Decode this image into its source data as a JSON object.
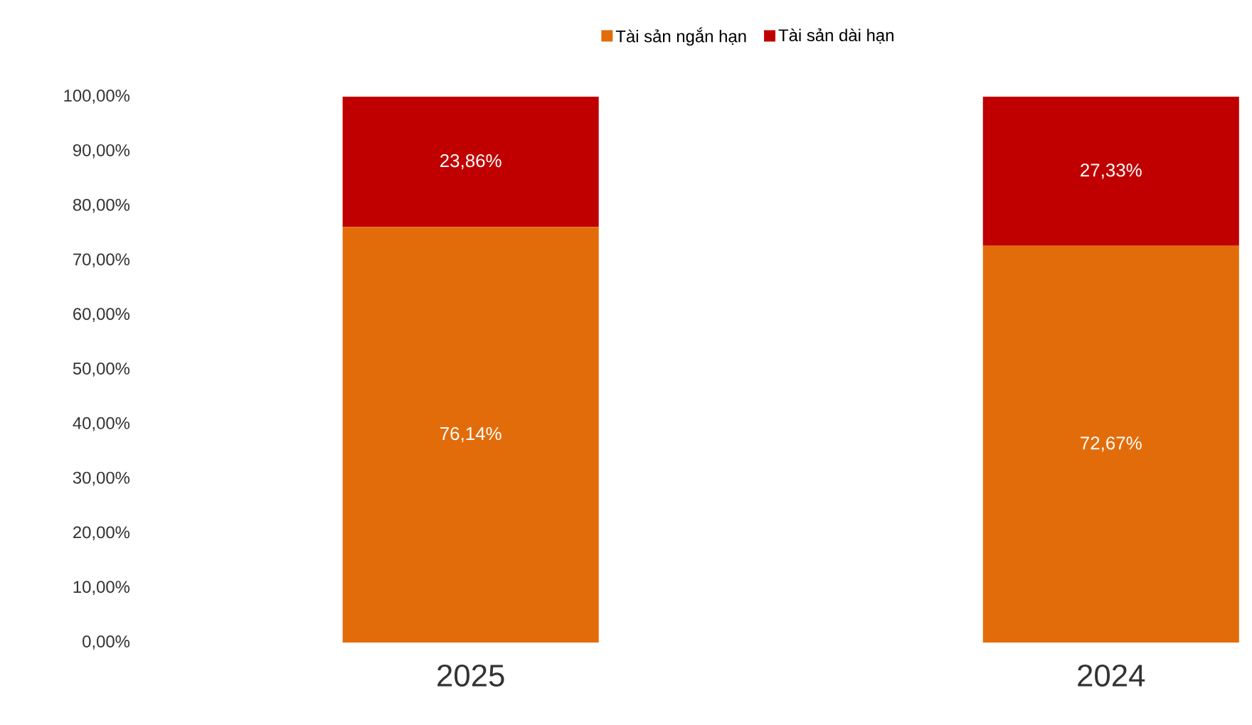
{
  "chart_data": {
    "type": "bar",
    "stacked": true,
    "categories": [
      "2025",
      "2024"
    ],
    "series": [
      {
        "name": "Tài sản ngắn hạn",
        "color": "#e36c0a",
        "values": [
          76.14,
          72.67
        ],
        "value_labels": [
          "76,14%",
          "72,67%"
        ]
      },
      {
        "name": "Tài sản dài hạn",
        "color": "#c00000",
        "values": [
          23.86,
          27.33
        ],
        "value_labels": [
          "23,86%",
          "27,33%"
        ]
      }
    ],
    "ylim": [
      0,
      100
    ],
    "yticks": [
      {
        "value": 0,
        "label": "0,00%"
      },
      {
        "value": 10,
        "label": "10,00%"
      },
      {
        "value": 20,
        "label": "20,00%"
      },
      {
        "value": 30,
        "label": "30,00%"
      },
      {
        "value": 40,
        "label": "40,00%"
      },
      {
        "value": 50,
        "label": "50,00%"
      },
      {
        "value": 60,
        "label": "60,00%"
      },
      {
        "value": 70,
        "label": "70,00%"
      },
      {
        "value": 80,
        "label": "80,00%"
      },
      {
        "value": 90,
        "label": "90,00%"
      },
      {
        "value": 100,
        "label": "100,00%"
      }
    ],
    "legend": "top",
    "grid": false
  }
}
